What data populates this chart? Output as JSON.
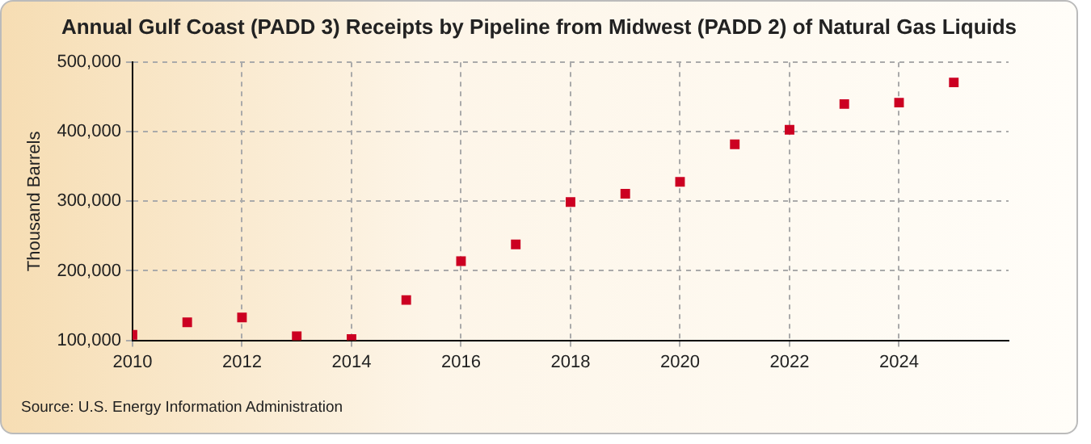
{
  "chart_data": {
    "type": "scatter",
    "title": "Annual Gulf Coast (PADD 3) Receipts by Pipeline from Midwest (PADD 2) of Natural Gas Liquids",
    "ylabel": "Thousand Barrels",
    "x": [
      2010,
      2011,
      2012,
      2013,
      2014,
      2015,
      2016,
      2017,
      2018,
      2019,
      2020,
      2021,
      2022,
      2023,
      2024,
      2025
    ],
    "series": [
      {
        "color": "#cc0022",
        "values": [
          108000,
          126000,
          133000,
          106000,
          102000,
          158000,
          214000,
          238000,
          299000,
          311000,
          328000,
          382000,
          403000,
          440000,
          442000,
          471000
        ]
      }
    ],
    "xlim": [
      2010,
      2026
    ],
    "xticks": [
      2010,
      2012,
      2014,
      2016,
      2018,
      2020,
      2022,
      2024
    ],
    "ylim": [
      100000,
      500000
    ],
    "yticks": [
      {
        "value": 100000,
        "label": "100,000"
      },
      {
        "value": 200000,
        "label": "200,000"
      },
      {
        "value": 300000,
        "label": "300,000"
      },
      {
        "value": 400000,
        "label": "400,000"
      },
      {
        "value": 500000,
        "label": "500,000"
      }
    ],
    "grid": true,
    "legend": false,
    "marker": "square",
    "annotations": [
      "Source: U.S. Energy Information Administration"
    ]
  }
}
